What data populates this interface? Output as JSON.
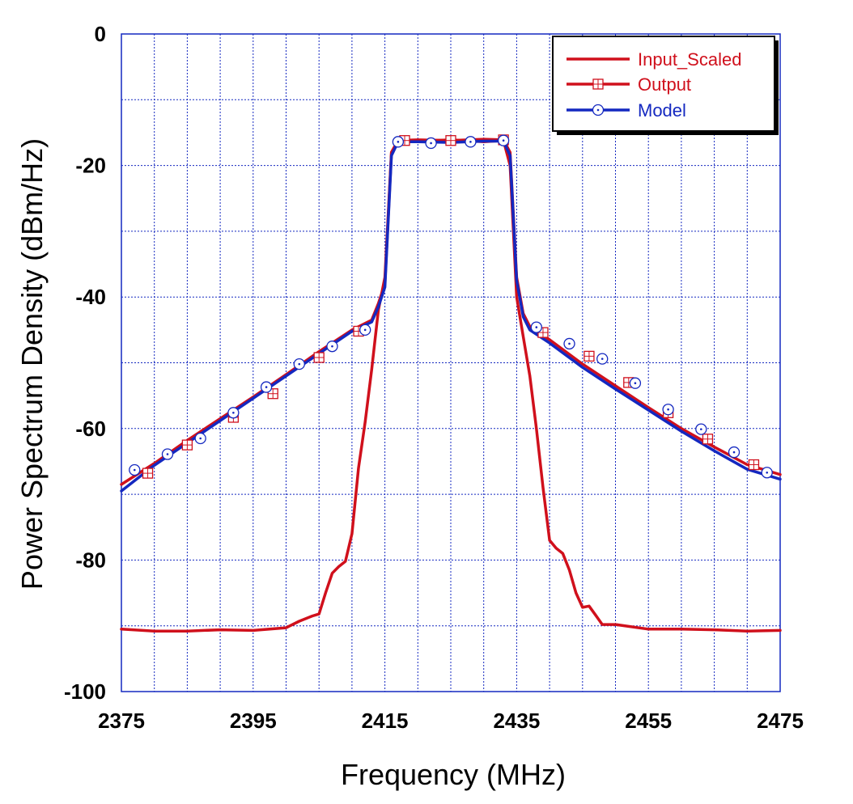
{
  "chart_data": {
    "type": "line",
    "title": "",
    "xlabel": "Frequency (MHz)",
    "ylabel": "Power Spectrum Density (dBm/Hz)",
    "xlim": [
      2375,
      2475
    ],
    "ylim": [
      -100,
      0
    ],
    "x_ticks": [
      2375,
      2395,
      2415,
      2435,
      2455,
      2475
    ],
    "y_ticks": [
      0,
      -20,
      -40,
      -60,
      -80,
      -100
    ],
    "x_tick_labels": [
      "2375",
      "2395",
      "2415",
      "2435",
      "2455",
      "2475"
    ],
    "y_tick_labels": [
      "0",
      "-20",
      "-40",
      "-60",
      "-80",
      "-100"
    ],
    "x_minor_step": 5,
    "y_minor_step": 10,
    "grid": true,
    "legend_position": "top-right",
    "series": [
      {
        "name": "Input_Scaled",
        "color": "#d0101c",
        "marker": "none",
        "x": [
          2375,
          2380,
          2385,
          2390,
          2395,
          2400,
          2402,
          2404,
          2405,
          2406,
          2407,
          2408,
          2409,
          2410,
          2411,
          2412,
          2413,
          2414,
          2415,
          2416,
          2417,
          2420,
          2425,
          2430,
          2433,
          2434,
          2435,
          2436,
          2437,
          2438,
          2439,
          2440,
          2441,
          2442,
          2443,
          2444,
          2445,
          2446,
          2447,
          2448,
          2450,
          2455,
          2460,
          2465,
          2470,
          2475
        ],
        "y": [
          -90.5,
          -90.8,
          -90.8,
          -90.6,
          -90.7,
          -90.3,
          -89.3,
          -88.5,
          -88.2,
          -85,
          -82,
          -81,
          -80.2,
          -76,
          -66,
          -59,
          -51,
          -42,
          -37,
          -18,
          -16.2,
          -16.3,
          -16.1,
          -16.4,
          -16.2,
          -20,
          -40,
          -46,
          -52,
          -60,
          -69,
          -77,
          -78.2,
          -79,
          -81.5,
          -85,
          -87.2,
          -87,
          -88.4,
          -89.8,
          -89.8,
          -90.5,
          -90.5,
          -90.6,
          -90.8,
          -90.7
        ]
      },
      {
        "name": "Output",
        "color": "#d0101c",
        "marker": "square-cross",
        "x": [
          2375,
          2380,
          2385,
          2390,
          2395,
          2400,
          2405,
          2410,
          2413,
          2414,
          2415,
          2416,
          2417,
          2420,
          2425,
          2430,
          2433,
          2434,
          2435,
          2436,
          2437,
          2440,
          2445,
          2450,
          2455,
          2460,
          2465,
          2470,
          2475
        ],
        "y": [
          -68.5,
          -65.3,
          -61.8,
          -58.5,
          -55.2,
          -51.8,
          -48.3,
          -45,
          -43.5,
          -41,
          -38,
          -18,
          -16.2,
          -16.1,
          -16.2,
          -16,
          -16.1,
          -18,
          -37,
          -42.5,
          -44.5,
          -46.5,
          -50.2,
          -53.5,
          -56.8,
          -60,
          -62.8,
          -65.5,
          -67
        ]
      },
      {
        "name": "Model",
        "color": "#1428c0",
        "marker": "circle-dot",
        "x": [
          2375,
          2380,
          2385,
          2390,
          2395,
          2400,
          2405,
          2410,
          2413,
          2414,
          2415,
          2416,
          2417,
          2420,
          2425,
          2430,
          2433,
          2434,
          2435,
          2436,
          2437,
          2440,
          2445,
          2450,
          2455,
          2460,
          2465,
          2470,
          2475
        ],
        "y": [
          -69.5,
          -65.6,
          -62.2,
          -58.8,
          -55.4,
          -52,
          -48.6,
          -45.2,
          -43.8,
          -41.5,
          -38.5,
          -18.5,
          -16.4,
          -16.4,
          -16.5,
          -16.3,
          -16.3,
          -18.5,
          -37.5,
          -43,
          -45,
          -47,
          -50.7,
          -54,
          -57.2,
          -60.4,
          -63.4,
          -66.2,
          -67.7
        ]
      }
    ],
    "marker_points": {
      "Output": [
        [
          2379,
          -66.8
        ],
        [
          2385,
          -62.5
        ],
        [
          2392,
          -58.3
        ],
        [
          2398,
          -54.7
        ],
        [
          2405,
          -49.2
        ],
        [
          2411,
          -45.2
        ],
        [
          2418,
          -16.2
        ],
        [
          2425,
          -16.2
        ],
        [
          2433,
          -16.1
        ],
        [
          2439,
          -45.4
        ],
        [
          2446,
          -49.0
        ],
        [
          2452,
          -53.0
        ],
        [
          2458,
          -57.6
        ],
        [
          2464,
          -61.6
        ],
        [
          2471,
          -65.5
        ]
      ],
      "Model": [
        [
          2377,
          -66.3
        ],
        [
          2382,
          -63.9
        ],
        [
          2387,
          -61.5
        ],
        [
          2392,
          -57.6
        ],
        [
          2397,
          -53.7
        ],
        [
          2402,
          -50.2
        ],
        [
          2407,
          -47.5
        ],
        [
          2412,
          -45.0
        ],
        [
          2417,
          -16.4
        ],
        [
          2422,
          -16.6
        ],
        [
          2428,
          -16.4
        ],
        [
          2433,
          -16.2
        ],
        [
          2438,
          -44.6
        ],
        [
          2443,
          -47.1
        ],
        [
          2448,
          -49.4
        ],
        [
          2453,
          -53.1
        ],
        [
          2458,
          -57.1
        ],
        [
          2463,
          -60.1
        ],
        [
          2468,
          -63.6
        ],
        [
          2473,
          -66.7
        ]
      ]
    }
  }
}
